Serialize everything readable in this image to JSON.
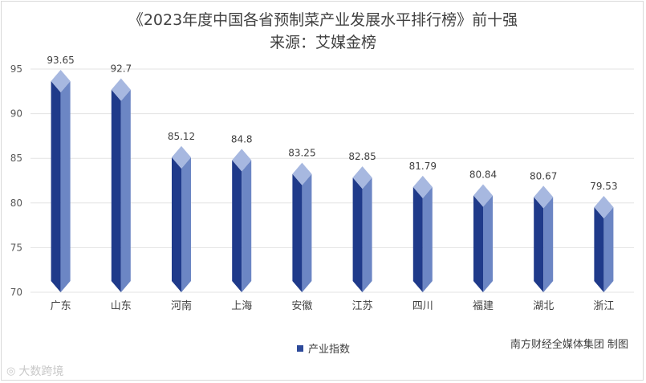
{
  "chart_data": {
    "type": "bar",
    "title": "《2023年度中国各省预制菜产业发展水平排行榜》前十强",
    "subtitle": "来源：艾媒金榜",
    "categories": [
      "广东",
      "山东",
      "河南",
      "上海",
      "安徽",
      "江苏",
      "四川",
      "福建",
      "湖北",
      "浙江"
    ],
    "series": [
      {
        "name": "产业指数",
        "values": [
          93.65,
          92.7,
          85.12,
          84.8,
          83.25,
          82.85,
          81.79,
          80.84,
          80.67,
          79.53
        ]
      }
    ],
    "data_labels": [
      "93.65",
      "92.7",
      "85.12",
      "84.8",
      "83.25",
      "82.85",
      "81.79",
      "80.84",
      "80.67",
      "79.53"
    ],
    "ylim": [
      70,
      95
    ],
    "yticks": [
      70,
      75,
      80,
      85,
      90,
      95
    ],
    "grid": true,
    "legend_position": "bottom",
    "colors": {
      "front": "#1f3a8a",
      "side": "#6c86c4",
      "top": "#a7b8e0"
    }
  },
  "credit": "南方财经全媒体集团 制图",
  "watermark": "大数跨境",
  "watermark_icon": "logo-icon"
}
